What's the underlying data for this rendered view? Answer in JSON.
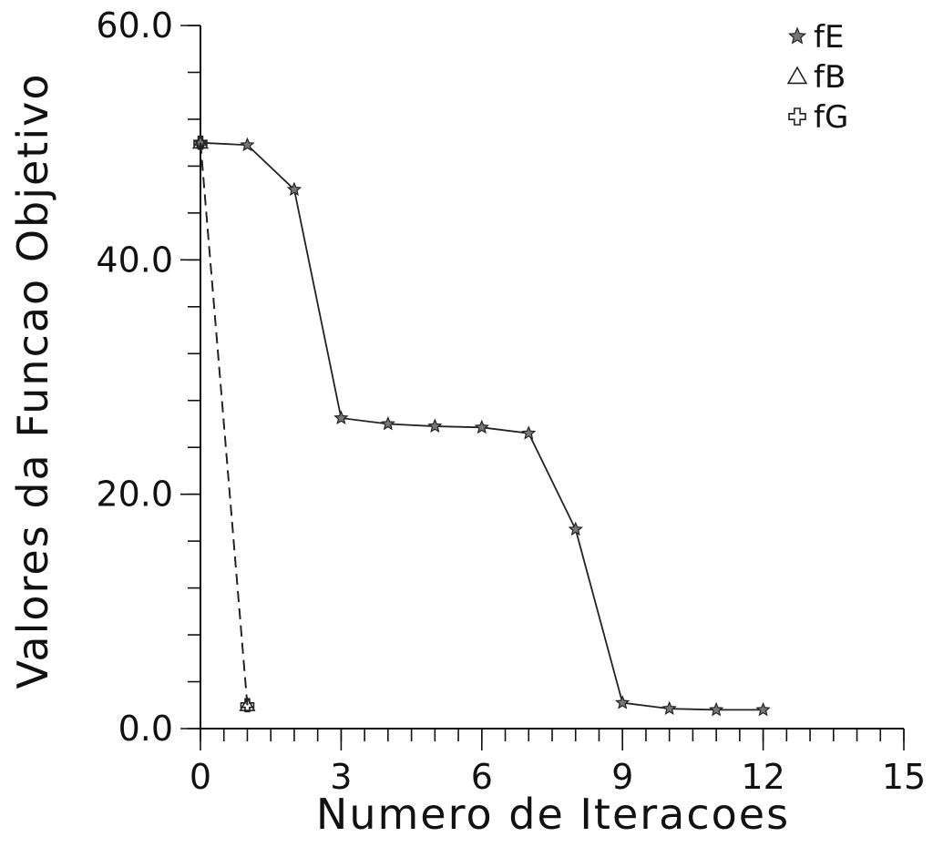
{
  "chart_data": {
    "type": "line",
    "title": "",
    "xlabel": "Numero de Iteracoes",
    "ylabel": "Valores da Funcao Objetivo",
    "xlim": [
      0,
      15
    ],
    "ylim": [
      0,
      60
    ],
    "x_ticks": [
      0,
      3,
      6,
      9,
      12,
      15
    ],
    "x_tick_labels": [
      "0",
      "3",
      "6",
      "9",
      "12",
      "15"
    ],
    "x_minor_step": 0.5,
    "y_ticks": [
      0,
      20,
      40,
      60
    ],
    "y_tick_labels": [
      "0.0",
      "20.0",
      "40.0",
      "60.0"
    ],
    "y_minor_step": 4,
    "grid": false,
    "legend_position": "top-right",
    "series": [
      {
        "name": "fE",
        "marker": "star",
        "line_style": "solid",
        "color": "#222222",
        "x": [
          0,
          1,
          2,
          3,
          4,
          5,
          6,
          7,
          8,
          9,
          10,
          11,
          12
        ],
        "y": [
          50.0,
          49.8,
          46.0,
          26.5,
          26.0,
          25.8,
          25.7,
          25.2,
          17.0,
          2.2,
          1.7,
          1.6,
          1.6
        ]
      },
      {
        "name": "fB",
        "marker": "triangle",
        "line_style": "dashed",
        "color": "#222222",
        "x": [
          0,
          1
        ],
        "y": [
          50.0,
          2.0
        ]
      },
      {
        "name": "fG",
        "marker": "plus",
        "line_style": "dashed",
        "color": "#222222",
        "x": [
          0,
          1
        ],
        "y": [
          50.0,
          2.0
        ]
      }
    ]
  }
}
